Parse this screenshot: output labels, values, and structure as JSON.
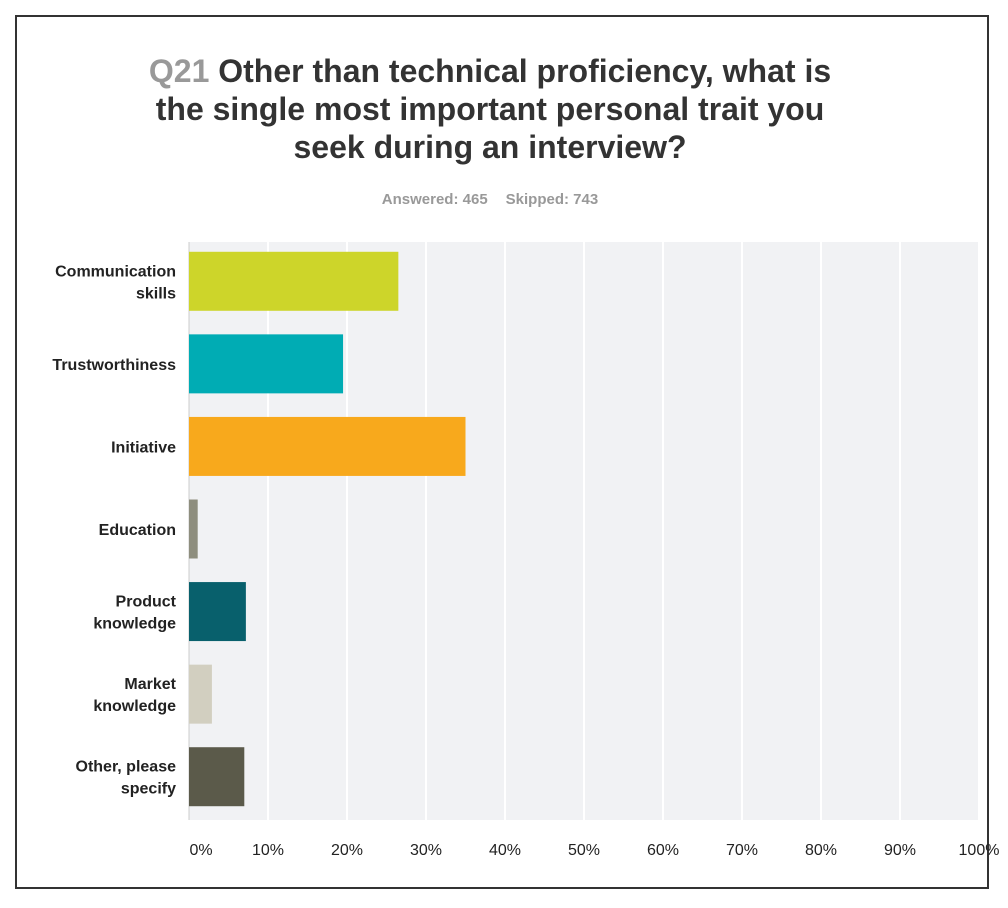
{
  "chart_data": {
    "type": "bar",
    "orientation": "horizontal",
    "question_number": "Q21",
    "title": "Other than technical proficiency, what is the single most important personal trait you seek during an interview?",
    "answered_label": "Answered: 465",
    "skipped_label": "Skipped: 743",
    "categories": [
      [
        "Communication",
        "skills"
      ],
      [
        "Trustworthiness"
      ],
      [
        "Initiative"
      ],
      [
        "Education"
      ],
      [
        "Product",
        "knowledge"
      ],
      [
        "Market",
        "knowledge"
      ],
      [
        "Other, please",
        "specify"
      ]
    ],
    "values": [
      26.5,
      19.5,
      35.0,
      1.1,
      7.2,
      2.9,
      7.0
    ],
    "colors": [
      "#cdd52a",
      "#00acb4",
      "#f8a91c",
      "#8e8e7e",
      "#08606c",
      "#d2cfc0",
      "#5b5a4a"
    ],
    "xlim": [
      0,
      100
    ],
    "xticks": [
      "0%",
      "10%",
      "20%",
      "30%",
      "40%",
      "50%",
      "60%",
      "70%",
      "80%",
      "90%",
      "100%"
    ],
    "grid": true,
    "xlabel": "",
    "ylabel": ""
  }
}
